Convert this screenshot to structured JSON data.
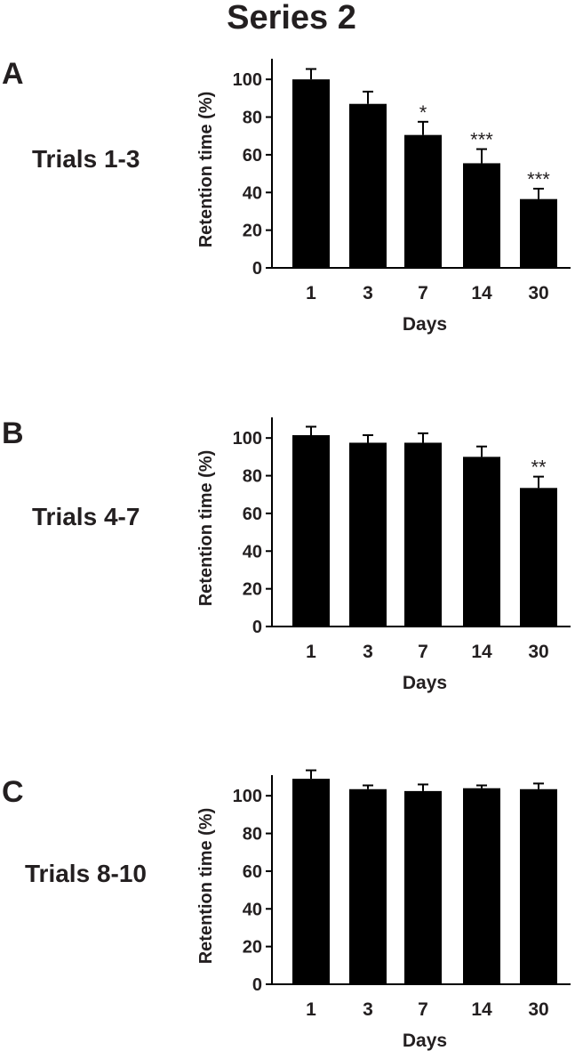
{
  "figure_title": "Series 2",
  "chart_data": [
    {
      "type": "bar",
      "panel": "A",
      "row_label": "Trials 1-3",
      "categories": [
        "1",
        "3",
        "7",
        "14",
        "30"
      ],
      "values": [
        100,
        87,
        70.5,
        55.5,
        36.5
      ],
      "errors": [
        5.5,
        6.5,
        7,
        7.5,
        5.5
      ],
      "significance": [
        "",
        "",
        "*",
        "***",
        "***"
      ],
      "xlabel": "Days",
      "ylabel": "Retention time (%)",
      "ylim": [
        0,
        110
      ],
      "yticks": [
        "0",
        "20",
        "40",
        "60",
        "80",
        "100"
      ],
      "grid": false,
      "bar_color": "#000000"
    },
    {
      "type": "bar",
      "panel": "B",
      "row_label": "Trials 4-7",
      "categories": [
        "1",
        "3",
        "7",
        "14",
        "30"
      ],
      "values": [
        101.5,
        97.5,
        97.5,
        90,
        73.5
      ],
      "errors": [
        4.5,
        4,
        5,
        5.5,
        6
      ],
      "significance": [
        "",
        "",
        "",
        "",
        "**"
      ],
      "xlabel": "Days",
      "ylabel": "Retention time (%)",
      "ylim": [
        0,
        110
      ],
      "yticks": [
        "0",
        "20",
        "40",
        "60",
        "80",
        "100"
      ],
      "grid": false,
      "bar_color": "#000000"
    },
    {
      "type": "bar",
      "panel": "C",
      "row_label": "Trials 8-10",
      "categories": [
        "1",
        "3",
        "7",
        "14",
        "30"
      ],
      "values": [
        109,
        103.5,
        102.5,
        104,
        103.5
      ],
      "errors": [
        4.5,
        2,
        3.5,
        1.5,
        3
      ],
      "significance": [
        "",
        "",
        "",
        "",
        ""
      ],
      "xlabel": "Days",
      "ylabel": "Retention time (%)",
      "ylim": [
        0,
        110
      ],
      "yticks": [
        "0",
        "20",
        "40",
        "60",
        "80",
        "100"
      ],
      "grid": false,
      "bar_color": "#000000"
    }
  ]
}
